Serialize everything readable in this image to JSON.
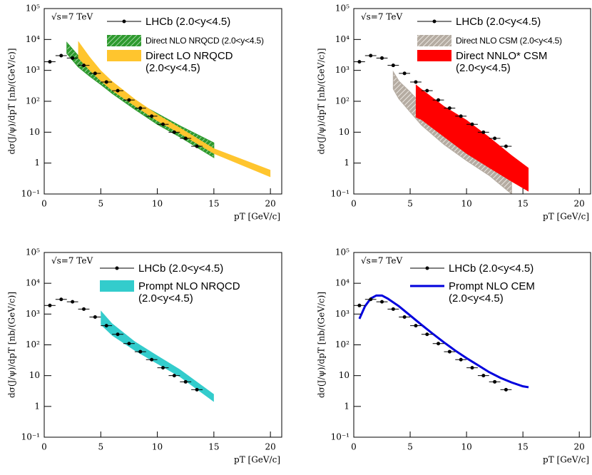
{
  "chart_data": [
    {
      "type": "log-band",
      "annotation": "√s=7 TeV",
      "xlabel": "pT [GeV/c]",
      "ylabel": "dσ(J/ψ)/dpT [nb/(GeV/c)]",
      "xlim": [
        0,
        21
      ],
      "xticks": [
        0,
        5,
        10,
        15,
        20
      ],
      "ylim": [
        0.1,
        100000
      ],
      "log_y": true,
      "yticks": [
        {
          "value": 0.1,
          "label": "10⁻¹"
        },
        1,
        10,
        {
          "value": 100,
          "label": "10²"
        },
        {
          "value": 1000,
          "label": "10³"
        },
        {
          "value": 10000,
          "label": "10⁴"
        },
        {
          "value": 100000,
          "label": "10⁵"
        }
      ],
      "series": [
        {
          "name": "LHCb (2.0<y<4.5)",
          "kind": "points",
          "color": "#000000",
          "x": [
            0.5,
            1.5,
            2.5,
            3.5,
            4.5,
            5.5,
            6.5,
            7.5,
            8.5,
            9.5,
            10.5,
            11.5,
            12.5,
            13.5
          ],
          "xerr": [
            0.5,
            0.5,
            0.5,
            0.5,
            0.5,
            0.5,
            0.5,
            0.5,
            0.5,
            0.5,
            0.5,
            0.5,
            0.5,
            0.5
          ],
          "values": [
            1900,
            3000,
            2500,
            1450,
            800,
            420,
            220,
            110,
            60,
            33,
            18,
            10,
            6.3,
            3.5
          ]
        },
        {
          "name": "Direct NLO NRQCD (2.0<y<4.5)",
          "kind": "band",
          "color": "#2e9a2e",
          "hatch": true,
          "x": [
            2,
            3,
            4,
            5,
            6,
            8,
            10,
            12,
            15
          ],
          "low": [
            3500,
            1300,
            650,
            350,
            180,
            55,
            18,
            7,
            1.5
          ],
          "high": [
            8000,
            3000,
            1300,
            650,
            330,
            100,
            40,
            16,
            4.5
          ]
        },
        {
          "name": "Direct LO NRQCD (2.0<y<4.5)",
          "kind": "band",
          "color": "#ffc52e",
          "hatch": false,
          "x": [
            3,
            4,
            5,
            6,
            8,
            10,
            12,
            15,
            20
          ],
          "low": [
            2500,
            1000,
            450,
            220,
            70,
            23,
            9,
            2,
            0.35
          ],
          "high": [
            9000,
            2800,
            1000,
            450,
            120,
            38,
            14,
            3,
            0.6
          ]
        }
      ]
    },
    {
      "type": "log-band",
      "annotation": "√s=7 TeV",
      "xlabel": "pT [GeV/c]",
      "ylabel": "dσ(J/ψ)/dpT [nb/(GeV/c)]",
      "xlim": [
        0,
        21
      ],
      "xticks": [
        0,
        5,
        10,
        15,
        20
      ],
      "ylim": [
        0.1,
        100000
      ],
      "log_y": true,
      "yticks": [
        {
          "value": 0.1,
          "label": "10⁻¹"
        },
        1,
        10,
        {
          "value": 100,
          "label": "10²"
        },
        {
          "value": 1000,
          "label": "10³"
        },
        {
          "value": 10000,
          "label": "10⁴"
        },
        {
          "value": 100000,
          "label": "10⁵"
        }
      ],
      "series": [
        {
          "name": "LHCb (2.0<y<4.5)",
          "kind": "points",
          "color": "#000000",
          "x": [
            0.5,
            1.5,
            2.5,
            3.5,
            4.5,
            5.5,
            6.5,
            7.5,
            8.5,
            9.5,
            10.5,
            11.5,
            12.5,
            13.5
          ],
          "xerr": [
            0.5,
            0.5,
            0.5,
            0.5,
            0.5,
            0.5,
            0.5,
            0.5,
            0.5,
            0.5,
            0.5,
            0.5,
            0.5,
            0.5
          ],
          "values": [
            1900,
            3000,
            2500,
            1450,
            800,
            420,
            220,
            110,
            60,
            33,
            18,
            10,
            6.3,
            3.5
          ]
        },
        {
          "name": "Direct NLO CSM (2.0<y<4.5)",
          "kind": "band",
          "color": "#b5aca2",
          "hatch": true,
          "x": [
            3.5,
            4,
            5,
            6,
            8,
            10,
            12,
            14
          ],
          "low": [
            250,
            120,
            45,
            17,
            4,
            1.2,
            0.4,
            0.1
          ],
          "high": [
            900,
            450,
            200,
            80,
            20,
            6,
            1.8,
            0.45
          ]
        },
        {
          "name": "Direct NNLO* CSM (2.0<y<4.5)",
          "kind": "band",
          "color": "#ff0000",
          "hatch": false,
          "x": [
            5.5,
            6,
            8,
            10,
            12,
            14,
            15.5
          ],
          "low": [
            30,
            25,
            7,
            2,
            0.7,
            0.25,
            0.12
          ],
          "high": [
            350,
            250,
            70,
            25,
            7,
            1.8,
            0.7
          ]
        }
      ]
    },
    {
      "type": "log-band",
      "annotation": "√s=7 TeV",
      "xlabel": "pT [GeV/c]",
      "ylabel": "dσ(J/ψ)/dpT [nb/(GeV/c)]",
      "xlim": [
        0,
        21
      ],
      "xticks": [
        0,
        5,
        10,
        15,
        20
      ],
      "ylim": [
        0.1,
        100000
      ],
      "log_y": true,
      "yticks": [
        {
          "value": 0.1,
          "label": "10⁻¹"
        },
        1,
        10,
        {
          "value": 100,
          "label": "10²"
        },
        {
          "value": 1000,
          "label": "10³"
        },
        {
          "value": 10000,
          "label": "10⁴"
        },
        {
          "value": 100000,
          "label": "10⁵"
        }
      ],
      "series": [
        {
          "name": "LHCb (2.0<y<4.5)",
          "kind": "points",
          "color": "#000000",
          "x": [
            0.5,
            1.5,
            2.5,
            3.5,
            4.5,
            5.5,
            6.5,
            7.5,
            8.5,
            9.5,
            10.5,
            11.5,
            12.5,
            13.5
          ],
          "xerr": [
            0.5,
            0.5,
            0.5,
            0.5,
            0.5,
            0.5,
            0.5,
            0.5,
            0.5,
            0.5,
            0.5,
            0.5,
            0.5,
            0.5
          ],
          "values": [
            1900,
            3000,
            2500,
            1450,
            800,
            420,
            220,
            110,
            60,
            33,
            18,
            10,
            6.3,
            3.5
          ]
        },
        {
          "name": "Prompt NLO NRQCD (2.0<y<4.5)",
          "kind": "band",
          "color": "#33cccc",
          "hatch": false,
          "x": [
            5,
            6,
            8,
            10,
            12,
            15
          ],
          "low": [
            450,
            200,
            65,
            24,
            9,
            1.4
          ],
          "high": [
            1300,
            500,
            130,
            45,
            16,
            2.5
          ]
        }
      ]
    },
    {
      "type": "log-band",
      "annotation": "√s=7 TeV",
      "xlabel": "pT [GeV/c]",
      "ylabel": "dσ(J/ψ)/dpT [nb/(GeV/c)]",
      "xlim": [
        0,
        21
      ],
      "xticks": [
        0,
        5,
        10,
        15,
        20
      ],
      "ylim": [
        0.1,
        100000
      ],
      "log_y": true,
      "yticks": [
        {
          "value": 0.1,
          "label": "10⁻¹"
        },
        1,
        10,
        {
          "value": 100,
          "label": "10²"
        },
        {
          "value": 1000,
          "label": "10³"
        },
        {
          "value": 10000,
          "label": "10⁴"
        },
        {
          "value": 100000,
          "label": "10⁵"
        }
      ],
      "series": [
        {
          "name": "LHCb (2.0<y<4.5)",
          "kind": "points",
          "color": "#000000",
          "x": [
            0.5,
            1.5,
            2.5,
            3.5,
            4.5,
            5.5,
            6.5,
            7.5,
            8.5,
            9.5,
            10.5,
            11.5,
            12.5,
            13.5
          ],
          "xerr": [
            0.5,
            0.5,
            0.5,
            0.5,
            0.5,
            0.5,
            0.5,
            0.5,
            0.5,
            0.5,
            0.5,
            0.5,
            0.5,
            0.5
          ],
          "values": [
            1900,
            3000,
            2500,
            1450,
            800,
            420,
            220,
            110,
            60,
            33,
            18,
            10,
            6.3,
            3.5
          ]
        },
        {
          "name": "Prompt NLO CEM (2.0<y<4.5)",
          "kind": "line",
          "color": "#0000dd",
          "x": [
            0.5,
            1,
            1.5,
            2,
            2.5,
            3,
            4,
            5,
            6,
            7,
            8,
            9,
            10,
            11,
            12,
            13,
            14,
            15,
            15.5
          ],
          "values": [
            700,
            1800,
            3200,
            4000,
            4000,
            3200,
            1800,
            900,
            450,
            230,
            120,
            65,
            37,
            22,
            13,
            8.5,
            6,
            4.5,
            4.2
          ]
        }
      ]
    }
  ]
}
